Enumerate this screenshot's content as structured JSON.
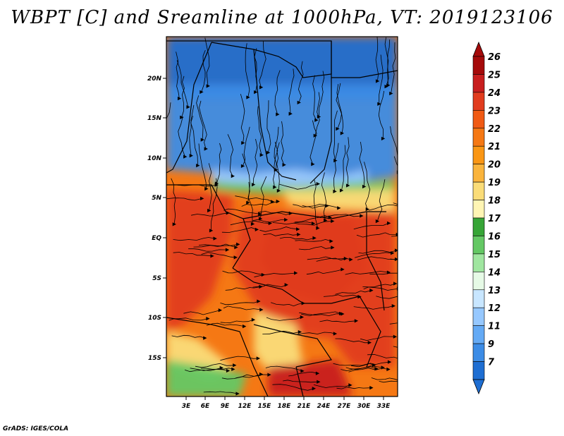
{
  "title": "WBPT [C] and Sreamline at 1000hPa, VT: 2019123106",
  "footer": "GrADS: IGES/COLA",
  "lat_labels": [
    "20N",
    "15N",
    "10N",
    "5N",
    "EQ",
    "5S",
    "10S",
    "15S"
  ],
  "lon_labels": [
    "3E",
    "6E",
    "9E",
    "12E",
    "15E",
    "18E",
    "21E",
    "24E",
    "27E",
    "30E",
    "33E"
  ],
  "colorbar": {
    "labels": [
      "26",
      "25",
      "24",
      "23",
      "22",
      "21",
      "20",
      "19",
      "18",
      "17",
      "16",
      "15",
      "14",
      "13",
      "12",
      "11",
      "9",
      "7"
    ],
    "colors": [
      "#a50a0a",
      "#c81e1e",
      "#e13c1e",
      "#f05a14",
      "#f57814",
      "#fa9614",
      "#fab43c",
      "#fadc78",
      "#fff5b4",
      "#37a537",
      "#64c864",
      "#a0e6a0",
      "#e6fae6",
      "#c8e6ff",
      "#96c8ff",
      "#64aaf5",
      "#3c8ce6",
      "#1e6ed2"
    ]
  },
  "field_colors": {
    "cold": "#3c8ce6",
    "cold_dark": "#1e6ed2",
    "cool_light": "#96c8ff",
    "green": "#64c864",
    "yellow": "#fadc78",
    "orange": "#f57814",
    "red": "#e13c1e",
    "darkred": "#c81e1e"
  }
}
